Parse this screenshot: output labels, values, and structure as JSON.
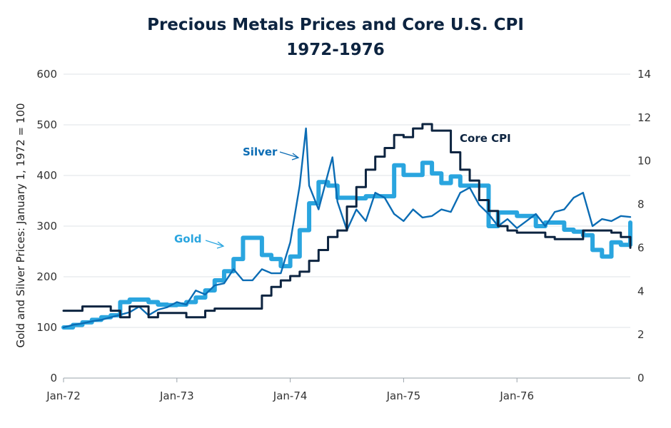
{
  "chart_data": {
    "type": "line",
    "title": [
      "Precious Metals Prices and Core U.S. CPI",
      "1972-1976"
    ],
    "ylabel": "Gold and Silver Prices: January 1, 1972 = 100",
    "y2label": "",
    "xlim": [
      "1972-01",
      "1977-01"
    ],
    "ylim": [
      0,
      600
    ],
    "y2lim": [
      0,
      14
    ],
    "x_ticks": [
      {
        "date": "1972-01",
        "label": "Jan-72"
      },
      {
        "date": "1973-01",
        "label": "Jan-73"
      },
      {
        "date": "1974-01",
        "label": "Jan-74"
      },
      {
        "date": "1975-01",
        "label": "Jan-75"
      },
      {
        "date": "1976-01",
        "label": "Jan-76"
      }
    ],
    "y_ticks": [
      "0",
      "100",
      "200",
      "300",
      "400",
      "500",
      "600"
    ],
    "y2_ticks": [
      "0",
      "2",
      "4",
      "6",
      "8",
      "10",
      "12",
      "14"
    ],
    "grid": "horizontal",
    "series": [
      {
        "name": "Gold",
        "axis": "left",
        "color": "#2aa5df",
        "style": "thick-step",
        "start": "1972-01",
        "values": [
          100,
          105,
          110,
          115,
          120,
          124,
          150,
          155,
          155,
          150,
          145,
          144,
          145,
          150,
          159,
          173,
          193,
          211,
          235,
          277,
          277,
          243,
          235,
          221,
          240,
          292,
          345,
          387,
          380,
          356,
          356,
          355,
          359,
          359,
          359,
          420,
          401,
          401,
          425,
          404,
          385,
          398,
          380,
          380,
          380,
          300,
          327,
          327,
          320,
          320,
          300,
          307,
          307,
          293,
          289,
          282,
          253,
          240,
          268,
          263,
          307
        ]
      },
      {
        "name": "Silver",
        "axis": "left",
        "color": "#0b6cb4",
        "style": "line",
        "start": "1972-01",
        "values": [
          100,
          105,
          108,
          112,
          115,
          120,
          125,
          130,
          141,
          124,
          135,
          140,
          150,
          145,
          173,
          165,
          183,
          187,
          215,
          193,
          193,
          215,
          207,
          207,
          268,
          380,
          380,
          333,
          404,
          348,
          292,
          333,
          310,
          366,
          356,
          324,
          310,
          333,
          317,
          320,
          333,
          328,
          366,
          376,
          342,
          324,
          300,
          314,
          296,
          310,
          324,
          300,
          328,
          333,
          356,
          366,
          300,
          314,
          310,
          320,
          318
        ],
        "extra_points": [
          [
            "1974-02-21",
            493
          ],
          [
            "1974-05-15",
            436
          ]
        ]
      },
      {
        "name": "Core CPI",
        "axis": "right",
        "color": "#0d2440",
        "style": "step",
        "start": "1972-01",
        "values": [
          3.1,
          3.1,
          3.3,
          3.3,
          3.3,
          3.1,
          2.8,
          3.3,
          3.3,
          2.8,
          3.0,
          3.0,
          3.0,
          2.8,
          2.8,
          3.1,
          3.2,
          3.2,
          3.2,
          3.2,
          3.2,
          3.8,
          4.2,
          4.5,
          4.7,
          4.9,
          5.4,
          5.9,
          6.5,
          6.8,
          7.9,
          8.8,
          9.6,
          10.2,
          10.6,
          11.2,
          11.1,
          11.5,
          11.7,
          11.4,
          11.4,
          10.4,
          9.6,
          9.1,
          8.2,
          7.7,
          7.0,
          6.8,
          6.7,
          6.7,
          6.7,
          6.5,
          6.4,
          6.4,
          6.4,
          6.8,
          6.8,
          6.8,
          6.7,
          6.5,
          6.0
        ]
      }
    ],
    "annotations": [
      {
        "text": "Silver",
        "series": "Silver"
      },
      {
        "text": "Gold",
        "series": "Gold"
      },
      {
        "text": "Core CPI",
        "series": "Core CPI"
      }
    ]
  }
}
